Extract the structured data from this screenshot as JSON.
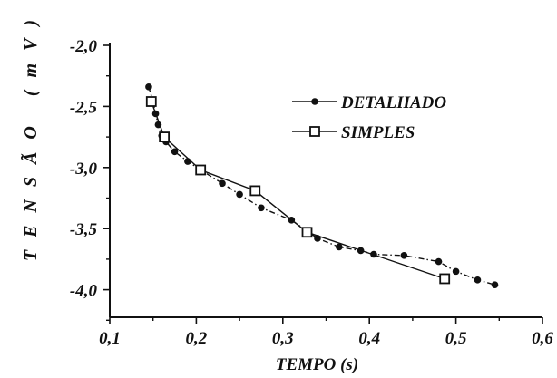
{
  "chart_data": {
    "type": "line",
    "xlabel": "TEMPO (s)",
    "ylabel": "TENSÃO (mV)",
    "xlim": [
      0.1,
      0.6
    ],
    "ylim": [
      -4.25,
      -2.0
    ],
    "x_ticks": [
      "0,1",
      "0,2",
      "0,3",
      "0,4",
      "0,5",
      "0,6"
    ],
    "y_ticks": [
      "-2,0",
      "-2,5",
      "-3,0",
      "-3,5",
      "-4,0"
    ],
    "legend_position": "top-right",
    "grid": false,
    "series": [
      {
        "name": "DETALHADO",
        "marker": "filled-circle",
        "line_style": "dash-dot",
        "color": "#111111",
        "x": [
          0.145,
          0.15,
          0.153,
          0.156,
          0.16,
          0.165,
          0.175,
          0.19,
          0.205,
          0.23,
          0.25,
          0.275,
          0.31,
          0.34,
          0.365,
          0.39,
          0.405,
          0.44,
          0.48,
          0.5,
          0.525,
          0.545
        ],
        "y": [
          -2.34,
          -2.46,
          -2.56,
          -2.65,
          -2.74,
          -2.79,
          -2.87,
          -2.95,
          -3.02,
          -3.13,
          -3.22,
          -3.33,
          -3.43,
          -3.58,
          -3.65,
          -3.68,
          -3.71,
          -3.72,
          -3.77,
          -3.85,
          -3.92,
          -3.96
        ]
      },
      {
        "name": "SIMPLES",
        "marker": "open-square",
        "line_style": "solid",
        "color": "#111111",
        "x": [
          0.148,
          0.163,
          0.205,
          0.268,
          0.328,
          0.487
        ],
        "y": [
          -2.46,
          -2.75,
          -3.02,
          -3.19,
          -3.53,
          -3.91
        ]
      }
    ]
  }
}
